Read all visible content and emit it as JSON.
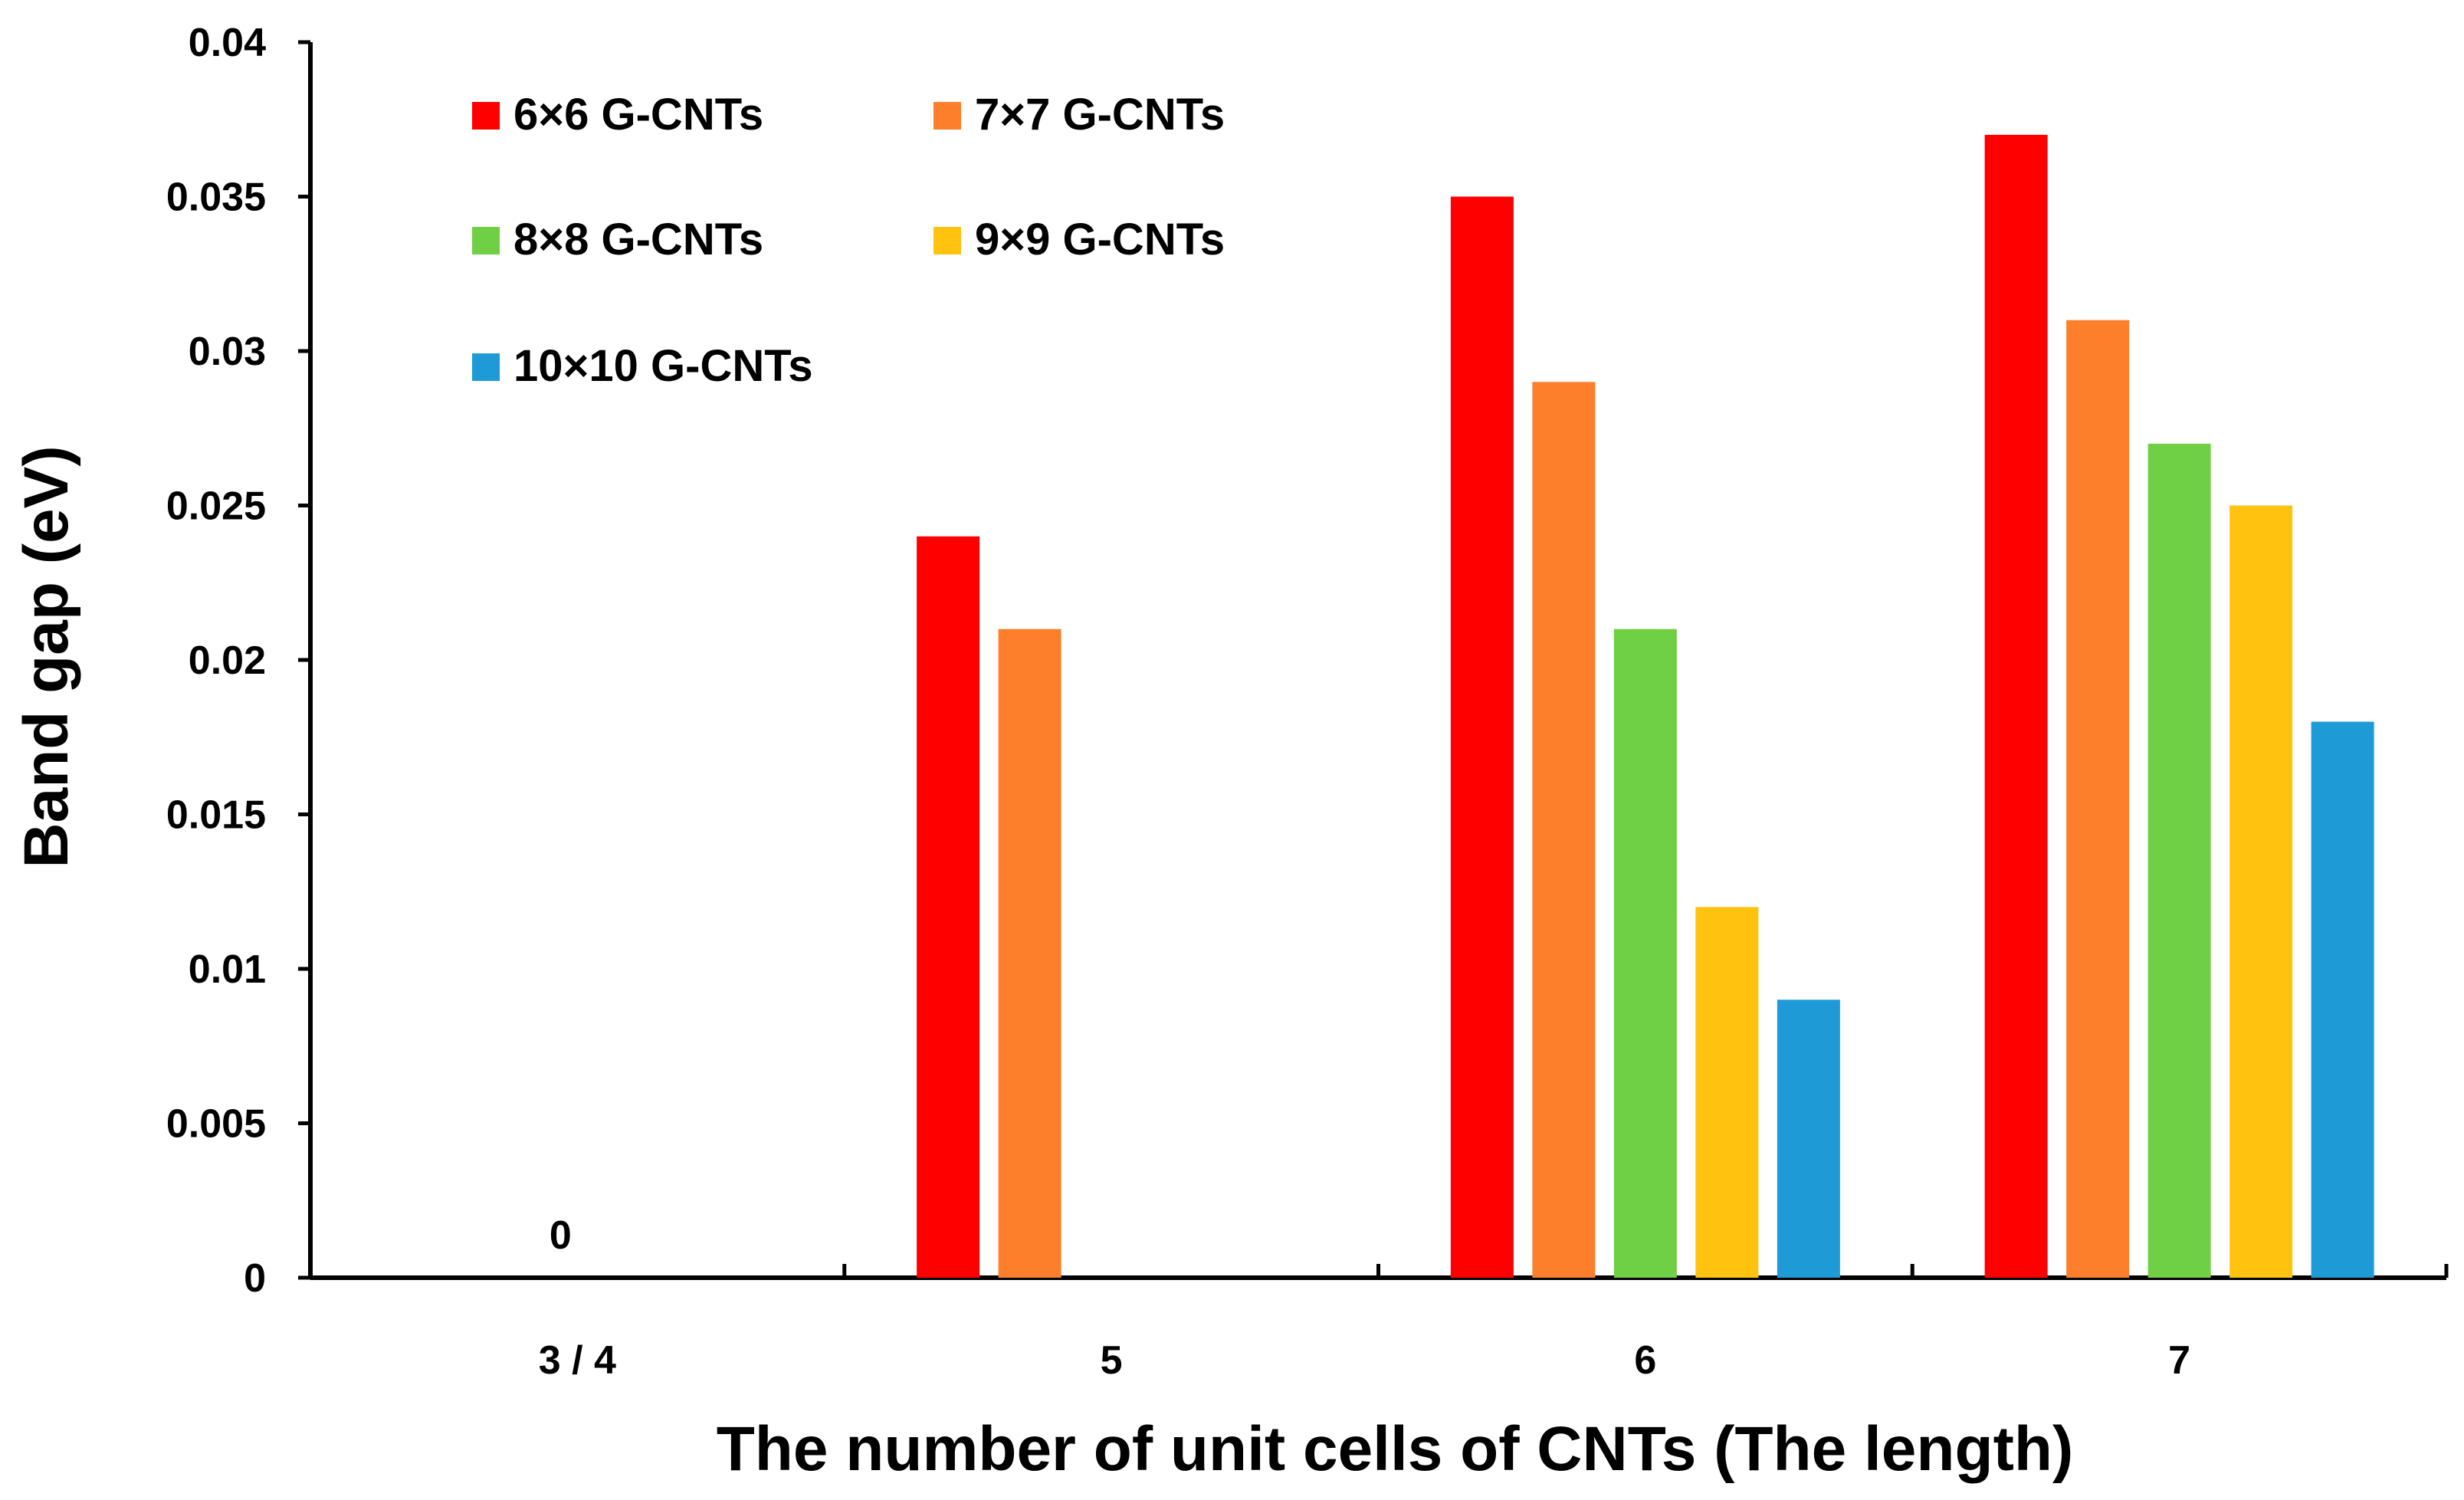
{
  "chart_data": {
    "type": "bar",
    "title": "",
    "xlabel": "The number of unit cells of CNTs (The length)",
    "ylabel": "Band gap (eV)",
    "ylim": [
      0,
      0.04
    ],
    "yticks": [
      "0",
      "0.005",
      "0.01",
      "0.015",
      "0.02",
      "0.025",
      "0.03",
      "0.035",
      "0.04"
    ],
    "categories": [
      "3 / 4",
      "5",
      "6",
      "7"
    ],
    "series": [
      {
        "name": "6×6 G-CNTs",
        "color": "#ff0000",
        "values": [
          0,
          0.024,
          0.035,
          0.037
        ]
      },
      {
        "name": "7×7 G-CNTs",
        "color": "#fd7f2c",
        "values": [
          0,
          0.021,
          0.029,
          0.031
        ]
      },
      {
        "name": "8×8 G-CNTs",
        "color": "#6fcf45",
        "values": [
          0,
          0,
          0.021,
          0.027
        ]
      },
      {
        "name": "9×9 G-CNTs",
        "color": "#ffc20f",
        "values": [
          0,
          0,
          0.012,
          0.025
        ]
      },
      {
        "name": "10×10 G-CNTs",
        "color": "#1e9bd7",
        "values": [
          0,
          0,
          0.009,
          0.018
        ]
      }
    ],
    "annotations": [
      {
        "text": "0",
        "category": "3 / 4"
      }
    ],
    "legend": "top-left",
    "grid": false
  }
}
